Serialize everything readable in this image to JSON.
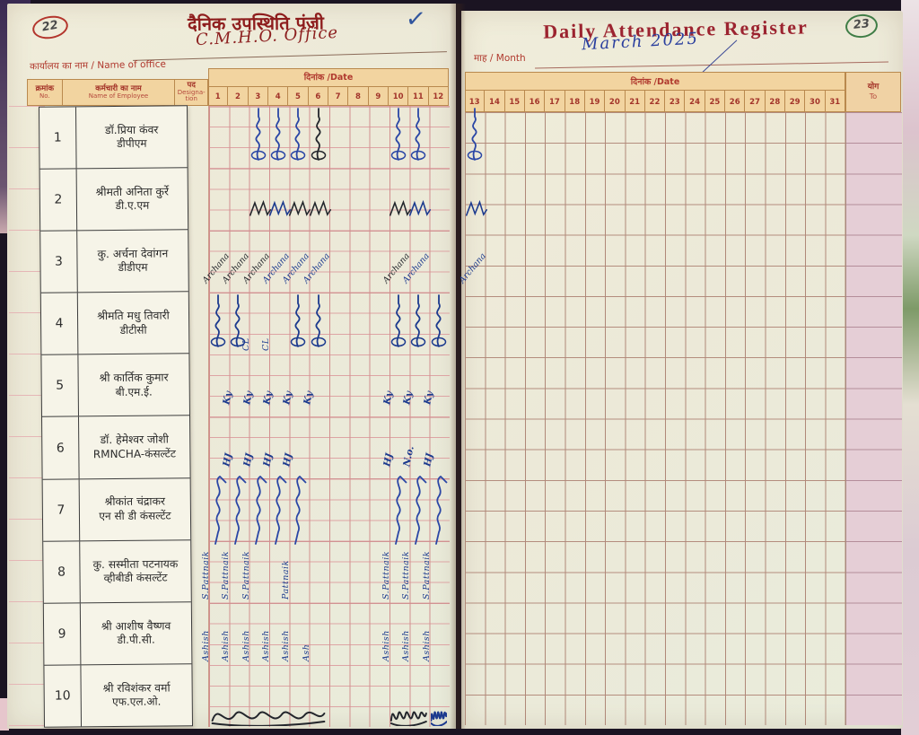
{
  "photo": {
    "left_page_no": "22",
    "right_page_no": "23",
    "tick_mark": "✓"
  },
  "left_page": {
    "title": "दैनिक उपस्थिति पंजी",
    "office_label": "कार्यालय का नाम / Name of office",
    "office_value": "C.M.H.O. Office",
    "date_label": "दिनांक /Date",
    "col_serial_hi": "क्रमांक",
    "col_serial_en": "No.",
    "col_name_hi": "कर्मचारी का नाम",
    "col_name_en": "Name of Employee",
    "col_desig_hi": "पद",
    "col_desig_en": "Designa-tion",
    "days": [
      "1",
      "2",
      "3",
      "4",
      "5",
      "6",
      "7",
      "8",
      "9",
      "10",
      "11",
      "12"
    ]
  },
  "right_page": {
    "title": "Daily Attendance Register",
    "month_label": "माह / Month",
    "month_value": "March 2025",
    "date_label": "दिनांक /Date",
    "days": [
      "13",
      "14",
      "15",
      "16",
      "17",
      "18",
      "19",
      "20",
      "21",
      "22",
      "23",
      "24",
      "25",
      "26",
      "27",
      "28",
      "29",
      "30",
      "31"
    ],
    "total_hi": "योग",
    "total_en": "To"
  },
  "employees": [
    {
      "no": "1",
      "name": "डॉ.प्रिया कंवर",
      "desig": "डीपीएम"
    },
    {
      "no": "2",
      "name": "श्रीमती अनिता कुर्रे",
      "desig": "डी.ए.एम"
    },
    {
      "no": "3",
      "name": "कु. अर्चना देवांगन",
      "desig": "डीडीएम"
    },
    {
      "no": "4",
      "name": "श्रीमति मधु तिवारी",
      "desig": "डीटीसी"
    },
    {
      "no": "5",
      "name": "श्री कार्तिक कुमार",
      "desig": "बी.एम.ई."
    },
    {
      "no": "6",
      "name": "डॉ. हेमेश्वर जोशी",
      "desig": "RMNCHA-कंसल्टेंट"
    },
    {
      "no": "7",
      "name": "श्रीकांत चंद्राकर",
      "desig": "एन सी डी कंसल्टेंट"
    },
    {
      "no": "8",
      "name": "कु. सस्मीता पटनायक",
      "desig": "व्हीबीडी कंसल्टेंट"
    },
    {
      "no": "9",
      "name": "श्री आशीष वैष्णव",
      "desig": "डी.पी.सी."
    },
    {
      "no": "10",
      "name": "श्री रविशंकर वर्मा",
      "desig": "एफ.एल.ओ."
    }
  ],
  "ink": {
    "bl": "#2a46a5",
    "db": "#1c3a8e",
    "bk": "#23262c"
  },
  "marks": [
    {
      "p": "L",
      "r": 1,
      "c": 3,
      "s": "fl",
      "k": "bl"
    },
    {
      "p": "L",
      "r": 1,
      "c": 4,
      "s": "fl",
      "k": "bl"
    },
    {
      "p": "L",
      "r": 1,
      "c": 5,
      "s": "fl",
      "k": "bl"
    },
    {
      "p": "L",
      "r": 1,
      "c": 6,
      "s": "fl",
      "k": "bk"
    },
    {
      "p": "L",
      "r": 1,
      "c": 10,
      "s": "fl",
      "k": "bl"
    },
    {
      "p": "L",
      "r": 1,
      "c": 11,
      "s": "fl",
      "k": "bl"
    },
    {
      "p": "L",
      "r": 2,
      "c": 3,
      "s": "mc",
      "k": "bk"
    },
    {
      "p": "L",
      "r": 2,
      "c": 4,
      "s": "mc",
      "k": "db"
    },
    {
      "p": "L",
      "r": 2,
      "c": 5,
      "s": "mc",
      "k": "bk"
    },
    {
      "p": "L",
      "r": 2,
      "c": 6,
      "s": "mc",
      "k": "bk"
    },
    {
      "p": "L",
      "r": 2,
      "c": 10,
      "s": "mc",
      "k": "bk"
    },
    {
      "p": "L",
      "r": 2,
      "c": 11,
      "s": "mc",
      "k": "db"
    },
    {
      "p": "L",
      "r": 3,
      "c": 1,
      "s": "diag",
      "k": "bk",
      "t": "Archana"
    },
    {
      "p": "L",
      "r": 3,
      "c": 2,
      "s": "diag",
      "k": "bk",
      "t": "Archana"
    },
    {
      "p": "L",
      "r": 3,
      "c": 3,
      "s": "diag",
      "k": "bk",
      "t": "Archana"
    },
    {
      "p": "L",
      "r": 3,
      "c": 4,
      "s": "diag",
      "k": "db",
      "t": "Archana"
    },
    {
      "p": "L",
      "r": 3,
      "c": 5,
      "s": "diag",
      "k": "db",
      "t": "Archana"
    },
    {
      "p": "L",
      "r": 3,
      "c": 6,
      "s": "diag",
      "k": "db",
      "t": "Archana"
    },
    {
      "p": "L",
      "r": 3,
      "c": 10,
      "s": "diag",
      "k": "bk",
      "t": "Archana"
    },
    {
      "p": "L",
      "r": 3,
      "c": 11,
      "s": "diag",
      "k": "db",
      "t": "Archana"
    },
    {
      "p": "L",
      "r": 4,
      "c": 1,
      "s": "fl",
      "k": "db"
    },
    {
      "p": "L",
      "r": 4,
      "c": 2,
      "s": "fl",
      "k": "db"
    },
    {
      "p": "L",
      "r": 4,
      "c": 3,
      "s": "vt",
      "k": "db",
      "t": "CL"
    },
    {
      "p": "L",
      "r": 4,
      "c": 4,
      "s": "vt",
      "k": "db",
      "t": "CL"
    },
    {
      "p": "L",
      "r": 4,
      "c": 5,
      "s": "fl",
      "k": "db"
    },
    {
      "p": "L",
      "r": 4,
      "c": 6,
      "s": "fl",
      "k": "db"
    },
    {
      "p": "L",
      "r": 4,
      "c": 10,
      "s": "fl",
      "k": "db"
    },
    {
      "p": "L",
      "r": 4,
      "c": 11,
      "s": "fl",
      "k": "db"
    },
    {
      "p": "L",
      "r": 4,
      "c": 12,
      "s": "fl",
      "k": "db"
    },
    {
      "p": "L",
      "r": 5,
      "c": 2,
      "s": "in2",
      "k": "db",
      "t": "Ky"
    },
    {
      "p": "L",
      "r": 5,
      "c": 3,
      "s": "in2",
      "k": "db",
      "t": "Ky"
    },
    {
      "p": "L",
      "r": 5,
      "c": 4,
      "s": "in2",
      "k": "db",
      "t": "Ky"
    },
    {
      "p": "L",
      "r": 5,
      "c": 5,
      "s": "in2",
      "k": "db",
      "t": "Ky"
    },
    {
      "p": "L",
      "r": 5,
      "c": 6,
      "s": "in2",
      "k": "db",
      "t": "Ky"
    },
    {
      "p": "L",
      "r": 5,
      "c": 10,
      "s": "in2",
      "k": "db",
      "t": "Ky"
    },
    {
      "p": "L",
      "r": 5,
      "c": 11,
      "s": "in2",
      "k": "db",
      "t": "Ky"
    },
    {
      "p": "L",
      "r": 5,
      "c": 12,
      "s": "in2",
      "k": "db",
      "t": "Ky"
    },
    {
      "p": "L",
      "r": 6,
      "c": 2,
      "s": "in2",
      "k": "db",
      "t": "HJ"
    },
    {
      "p": "L",
      "r": 6,
      "c": 3,
      "s": "in2",
      "k": "db",
      "t": "HJ"
    },
    {
      "p": "L",
      "r": 6,
      "c": 4,
      "s": "in2",
      "k": "db",
      "t": "HJ"
    },
    {
      "p": "L",
      "r": 6,
      "c": 5,
      "s": "in2",
      "k": "db",
      "t": "HJ"
    },
    {
      "p": "L",
      "r": 6,
      "c": 10,
      "s": "in2",
      "k": "db",
      "t": "HJ"
    },
    {
      "p": "L",
      "r": 6,
      "c": 11,
      "s": "in2",
      "k": "db",
      "t": "N.o."
    },
    {
      "p": "L",
      "r": 6,
      "c": 12,
      "s": "in2",
      "k": "db",
      "t": "HJ"
    },
    {
      "p": "L",
      "r": 7,
      "c": 1,
      "s": "fl2",
      "k": "bl"
    },
    {
      "p": "L",
      "r": 7,
      "c": 2,
      "s": "fl2",
      "k": "bl"
    },
    {
      "p": "L",
      "r": 7,
      "c": 3,
      "s": "fl2",
      "k": "bl"
    },
    {
      "p": "L",
      "r": 7,
      "c": 4,
      "s": "fl2",
      "k": "bl"
    },
    {
      "p": "L",
      "r": 7,
      "c": 5,
      "s": "fl2",
      "k": "bl"
    },
    {
      "p": "L",
      "r": 7,
      "c": 10,
      "s": "fl2",
      "k": "bl"
    },
    {
      "p": "L",
      "r": 7,
      "c": 11,
      "s": "fl2",
      "k": "bl"
    },
    {
      "p": "L",
      "r": 7,
      "c": 12,
      "s": "fl2",
      "k": "bl"
    },
    {
      "p": "L",
      "r": 8,
      "c": 1,
      "s": "vt",
      "k": "db",
      "t": "S.Pattnaik"
    },
    {
      "p": "L",
      "r": 8,
      "c": 2,
      "s": "vt",
      "k": "db",
      "t": "S.Pattnaik"
    },
    {
      "p": "L",
      "r": 8,
      "c": 3,
      "s": "vt",
      "k": "db",
      "t": "S.Pattnaik"
    },
    {
      "p": "L",
      "r": 8,
      "c": 5,
      "s": "vt",
      "k": "db",
      "t": "Pattnaik"
    },
    {
      "p": "L",
      "r": 8,
      "c": 10,
      "s": "vt",
      "k": "db",
      "t": "S.Pattnaik"
    },
    {
      "p": "L",
      "r": 8,
      "c": 11,
      "s": "vt",
      "k": "db",
      "t": "S.Pattnaik"
    },
    {
      "p": "L",
      "r": 8,
      "c": 12,
      "s": "vt",
      "k": "db",
      "t": "S.Pattnaik"
    },
    {
      "p": "L",
      "r": 9,
      "c": 1,
      "s": "vt",
      "k": "db",
      "t": "Ashish"
    },
    {
      "p": "L",
      "r": 9,
      "c": 2,
      "s": "vt",
      "k": "db",
      "t": "Ashish"
    },
    {
      "p": "L",
      "r": 9,
      "c": 3,
      "s": "vt",
      "k": "db",
      "t": "Ashish"
    },
    {
      "p": "L",
      "r": 9,
      "c": 4,
      "s": "vt",
      "k": "db",
      "t": "Ashish"
    },
    {
      "p": "L",
      "r": 9,
      "c": 5,
      "s": "vt",
      "k": "db",
      "t": "Ashish"
    },
    {
      "p": "L",
      "r": 9,
      "c": 6,
      "s": "vt",
      "k": "db",
      "t": "Ash"
    },
    {
      "p": "L",
      "r": 9,
      "c": 10,
      "s": "vt",
      "k": "db",
      "t": "Ashish"
    },
    {
      "p": "L",
      "r": 9,
      "c": 11,
      "s": "vt",
      "k": "db",
      "t": "Ashish"
    },
    {
      "p": "L",
      "r": 9,
      "c": 12,
      "s": "vt",
      "k": "db",
      "t": "Ashish"
    },
    {
      "p": "L",
      "r": 10,
      "c": 1,
      "s": "loop",
      "k": "bk",
      "w": 6
    },
    {
      "p": "L",
      "r": 10,
      "c": 10,
      "s": "loop",
      "k": "bk",
      "w": 2
    },
    {
      "p": "L",
      "r": 10,
      "c": 12,
      "s": "loop",
      "k": "db",
      "w": 1
    },
    {
      "p": "R",
      "r": 1,
      "c": 13,
      "s": "fl",
      "k": "bl"
    },
    {
      "p": "R",
      "r": 2,
      "c": 13,
      "s": "mc",
      "k": "db"
    },
    {
      "p": "R",
      "r": 3,
      "c": 13,
      "s": "diag",
      "k": "db",
      "t": "Archana"
    }
  ]
}
